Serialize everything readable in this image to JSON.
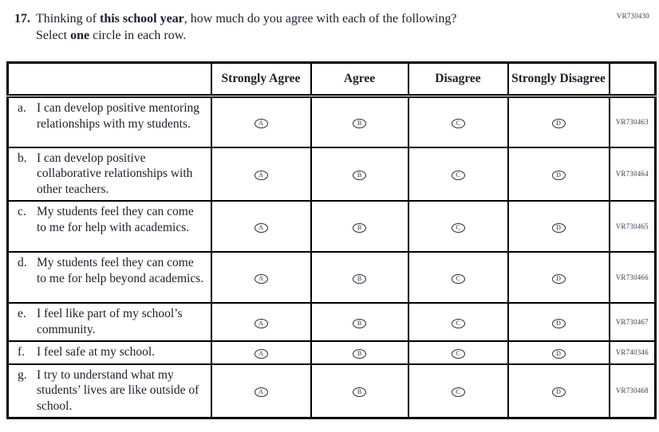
{
  "page": {
    "corner_code": "VR730430"
  },
  "question": {
    "number": "17.",
    "lines": [
      [
        {
          "t": "Thinking of ",
          "b": false
        },
        {
          "t": "this school year",
          "b": true
        },
        {
          "t": ", how much do you agree with each of the following?",
          "b": false
        }
      ],
      [
        {
          "t": "Select ",
          "b": false
        },
        {
          "t": "one",
          "b": true
        },
        {
          "t": " circle in each row.",
          "b": false
        }
      ]
    ]
  },
  "table": {
    "column_headers": [
      "Strongly Agree",
      "Agree",
      "Disagree",
      "Strongly Disagree"
    ],
    "option_letters": [
      "A",
      "B",
      "C",
      "D"
    ],
    "rows": [
      {
        "letter": "a.",
        "statement": "I can develop positive mentoring relationships with my students.",
        "code": "VR730463",
        "lines": 3
      },
      {
        "letter": "b.",
        "statement": "I can develop positive collaborative relationships with other teachers.",
        "code": "VR730464",
        "lines": 3
      },
      {
        "letter": "c.",
        "statement": "My students feel they can come to me for help with academics.",
        "code": "VR730465",
        "lines": 3
      },
      {
        "letter": "d.",
        "statement": "My students feel they can come to me for help beyond academics.",
        "code": "VR730466",
        "lines": 3
      },
      {
        "letter": "e.",
        "statement": "I feel like part of my school’s community.",
        "code": "VR730467",
        "lines": 2
      },
      {
        "letter": "f.",
        "statement": "I feel safe at my school.",
        "code": "VR740346",
        "lines": 1
      },
      {
        "letter": "g.",
        "statement": "I try to understand what my students’ lives are like outside of school.",
        "code": "VR730468",
        "lines": 3
      }
    ]
  }
}
